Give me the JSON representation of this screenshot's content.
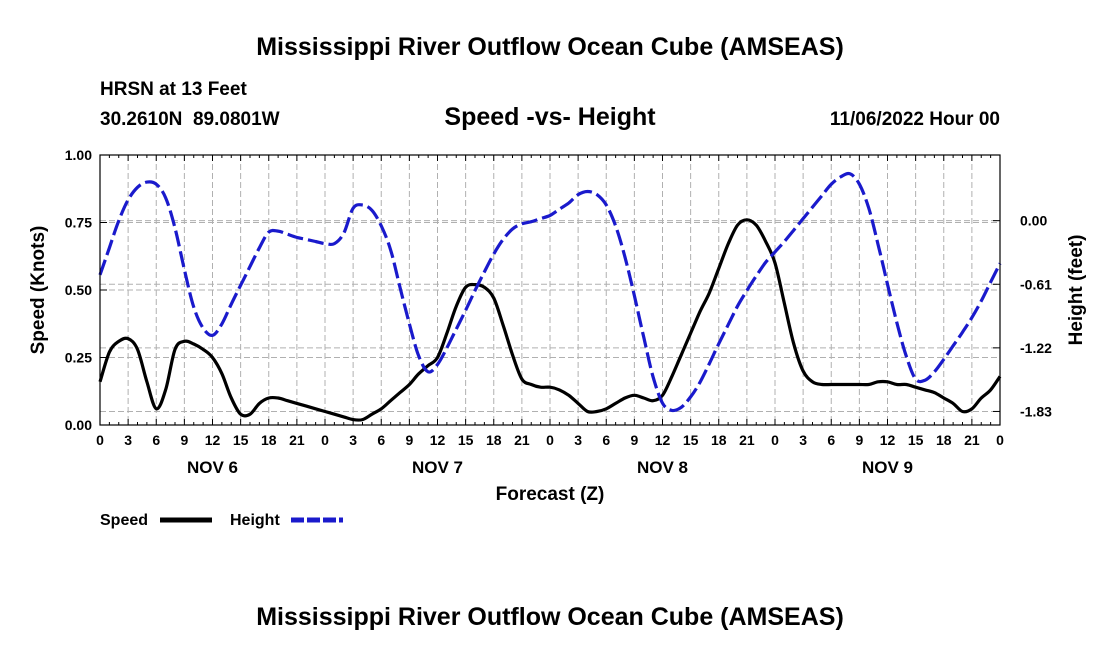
{
  "page_title": "Mississippi River Outflow Ocean Cube (AMSEAS)",
  "footer_title": "Mississippi River Outflow Ocean Cube (AMSEAS)",
  "station": {
    "name": "HRSN at 13 Feet",
    "coords": "30.2610N  89.0801W",
    "datetime": "11/06/2022 Hour 00"
  },
  "chart_data": {
    "type": "line",
    "title": "Speed -vs- Height",
    "xlabel": "Forecast (Z)",
    "ylabel_left": "Speed (Knots)",
    "ylabel_right": "Height (feet)",
    "x_range_hours": [
      0,
      96
    ],
    "x_tick_step_hours": 3,
    "x_tick_labels": [
      "0",
      "3",
      "6",
      "9",
      "12",
      "15",
      "18",
      "21",
      "0",
      "3",
      "6",
      "9",
      "12",
      "15",
      "18",
      "21",
      "0",
      "3",
      "6",
      "9",
      "12",
      "15",
      "18",
      "21",
      "0",
      "3",
      "6",
      "9",
      "12",
      "15",
      "18",
      "21",
      "0"
    ],
    "day_labels": [
      {
        "label": "NOV 6",
        "hour": 12
      },
      {
        "label": "NOV 7",
        "hour": 36
      },
      {
        "label": "NOV 8",
        "hour": 60
      },
      {
        "label": "NOV 9",
        "hour": 84
      }
    ],
    "ylim_left": [
      0,
      1.0
    ],
    "yticks_left": [
      "0.00",
      "0.25",
      "0.50",
      "0.75",
      "1.00"
    ],
    "ylim_right": [
      -1.96,
      0.63
    ],
    "yticks_right": [
      "0.00",
      "-0.61",
      "-1.22",
      "-1.83"
    ],
    "grid": true,
    "legend": [
      {
        "name": "Speed",
        "color": "#000000",
        "style": "solid"
      },
      {
        "name": "Height",
        "color": "#1a1acc",
        "style": "dashed"
      }
    ],
    "series": [
      {
        "name": "Speed",
        "axis": "left",
        "color": "#000000",
        "style": "solid",
        "x": [
          0,
          1,
          2,
          3,
          4,
          5,
          6,
          7,
          8,
          9,
          10,
          11,
          12,
          13,
          14,
          15,
          16,
          17,
          18,
          19,
          20,
          21,
          22,
          23,
          24,
          25,
          26,
          27,
          28,
          29,
          30,
          31,
          32,
          33,
          34,
          35,
          36,
          37,
          38,
          39,
          40,
          41,
          42,
          43,
          44,
          45,
          46,
          47,
          48,
          49,
          50,
          51,
          52,
          53,
          54,
          55,
          56,
          57,
          58,
          59,
          60,
          61,
          62,
          63,
          64,
          65,
          66,
          67,
          68,
          69,
          70,
          71,
          72,
          73,
          74,
          75,
          76,
          77,
          78,
          79,
          80,
          81,
          82,
          83,
          84,
          85,
          86,
          87,
          88,
          89,
          90,
          91,
          92,
          93,
          94,
          95,
          96
        ],
        "values": [
          0.16,
          0.27,
          0.31,
          0.32,
          0.28,
          0.16,
          0.06,
          0.13,
          0.28,
          0.31,
          0.3,
          0.28,
          0.25,
          0.19,
          0.1,
          0.04,
          0.04,
          0.08,
          0.1,
          0.1,
          0.09,
          0.08,
          0.07,
          0.06,
          0.05,
          0.04,
          0.03,
          0.02,
          0.02,
          0.04,
          0.06,
          0.09,
          0.12,
          0.15,
          0.19,
          0.22,
          0.25,
          0.34,
          0.44,
          0.51,
          0.52,
          0.51,
          0.47,
          0.37,
          0.26,
          0.17,
          0.15,
          0.14,
          0.14,
          0.13,
          0.11,
          0.08,
          0.05,
          0.05,
          0.06,
          0.08,
          0.1,
          0.11,
          0.1,
          0.09,
          0.11,
          0.18,
          0.26,
          0.34,
          0.42,
          0.49,
          0.58,
          0.67,
          0.74,
          0.76,
          0.74,
          0.68,
          0.6,
          0.45,
          0.3,
          0.2,
          0.16,
          0.15,
          0.15,
          0.15,
          0.15,
          0.15,
          0.15,
          0.16,
          0.16,
          0.15,
          0.15,
          0.14,
          0.13,
          0.12,
          0.1,
          0.08,
          0.05,
          0.06,
          0.1,
          0.13,
          0.18
        ]
      },
      {
        "name": "Height",
        "axis": "right",
        "color": "#1a1acc",
        "style": "dashed",
        "x": [
          0,
          1,
          2,
          3,
          4,
          5,
          6,
          7,
          8,
          9,
          10,
          11,
          12,
          13,
          14,
          15,
          16,
          17,
          18,
          19,
          20,
          21,
          22,
          23,
          24,
          25,
          26,
          27,
          28,
          29,
          30,
          31,
          32,
          33,
          34,
          35,
          36,
          37,
          38,
          39,
          40,
          41,
          42,
          43,
          44,
          45,
          46,
          47,
          48,
          49,
          50,
          51,
          52,
          53,
          54,
          55,
          56,
          57,
          58,
          59,
          60,
          61,
          62,
          63,
          64,
          65,
          66,
          67,
          68,
          69,
          70,
          71,
          72,
          73,
          74,
          75,
          76,
          77,
          78,
          79,
          80,
          81,
          82,
          83,
          84,
          85,
          86,
          87,
          88,
          89,
          90,
          91,
          92,
          93,
          94,
          95,
          96
        ],
        "values": [
          -0.52,
          -0.26,
          0.0,
          0.2,
          0.32,
          0.37,
          0.35,
          0.22,
          -0.07,
          -0.47,
          -0.83,
          -1.03,
          -1.1,
          -0.99,
          -0.8,
          -0.62,
          -0.44,
          -0.26,
          -0.11,
          -0.1,
          -0.13,
          -0.16,
          -0.18,
          -0.2,
          -0.22,
          -0.22,
          -0.12,
          0.12,
          0.15,
          0.1,
          -0.05,
          -0.28,
          -0.64,
          -0.99,
          -1.3,
          -1.45,
          -1.38,
          -1.22,
          -1.04,
          -0.86,
          -0.67,
          -0.49,
          -0.32,
          -0.18,
          -0.08,
          -0.03,
          -0.01,
          0.02,
          0.05,
          0.11,
          0.17,
          0.25,
          0.28,
          0.25,
          0.15,
          -0.05,
          -0.35,
          -0.72,
          -1.12,
          -1.5,
          -1.75,
          -1.82,
          -1.79,
          -1.69,
          -1.55,
          -1.37,
          -1.18,
          -1.0,
          -0.82,
          -0.67,
          -0.53,
          -0.4,
          -0.3,
          -0.2,
          -0.09,
          0.02,
          0.13,
          0.24,
          0.35,
          0.42,
          0.45,
          0.35,
          0.12,
          -0.23,
          -0.61,
          -0.98,
          -1.3,
          -1.52,
          -1.53,
          -1.45,
          -1.33,
          -1.2,
          -1.07,
          -0.93,
          -0.77,
          -0.59,
          -0.41
        ]
      }
    ]
  }
}
